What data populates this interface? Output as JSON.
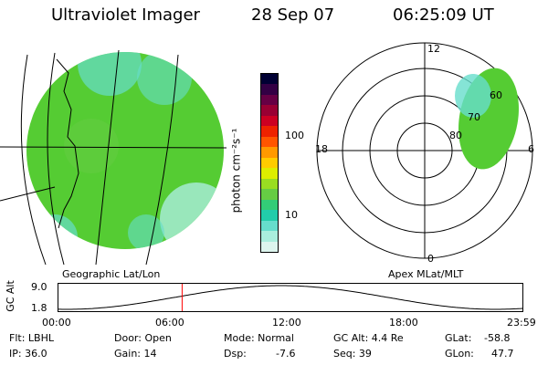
{
  "header": {
    "instrument": "Ultraviolet Imager",
    "date": "28 Sep 07",
    "time": "06:25:09 UT"
  },
  "geo_panel": {
    "caption": "Geographic Lat/Lon"
  },
  "polar_panel": {
    "caption": "Apex MLat/MLT",
    "mlt_labels": {
      "top": "12",
      "left": "18",
      "right": "6",
      "bottom": "0"
    },
    "lat_labels": [
      "60",
      "70",
      "80"
    ]
  },
  "colorbar": {
    "unit_label": "photon cm⁻²s⁻¹",
    "ticks": [
      "100",
      "10"
    ],
    "colors": [
      "#000033",
      "#330044",
      "#660044",
      "#990033",
      "#cc0022",
      "#ee2200",
      "#ff5500",
      "#ff9900",
      "#ffcc00",
      "#ddee00",
      "#99dd22",
      "#66cc44",
      "#33cc77",
      "#22ccaa",
      "#66ddcc",
      "#aaeedd",
      "#ddf5ee"
    ]
  },
  "altitude_plot": {
    "ylabel": "GC Alt",
    "y_ticks": [
      "9.0",
      "1.8"
    ],
    "x_ticks": [
      "00:00",
      "06:00",
      "12:00",
      "18:00",
      "23:59"
    ],
    "marker_time": "06:25",
    "marker_color": "#ff0000"
  },
  "footer": {
    "flt": "Flt: LBHL",
    "ip": "IP: 36.0",
    "door": "Door: Open",
    "gain": "Gain: 14",
    "mode": "Mode: Normal",
    "dsp_label": "Dsp:",
    "dsp_value": "-7.6",
    "gcalt": "GC Alt: 4.4 Re",
    "seq": "Seq: 39",
    "glat_label": "GLat:",
    "glat_value": "-58.8",
    "glon_label": "GLon:",
    "glon_value": "47.7"
  },
  "colors": {
    "aurora_green": "#55cc33",
    "aurora_cyan": "#66ddcc",
    "line": "#000000"
  }
}
